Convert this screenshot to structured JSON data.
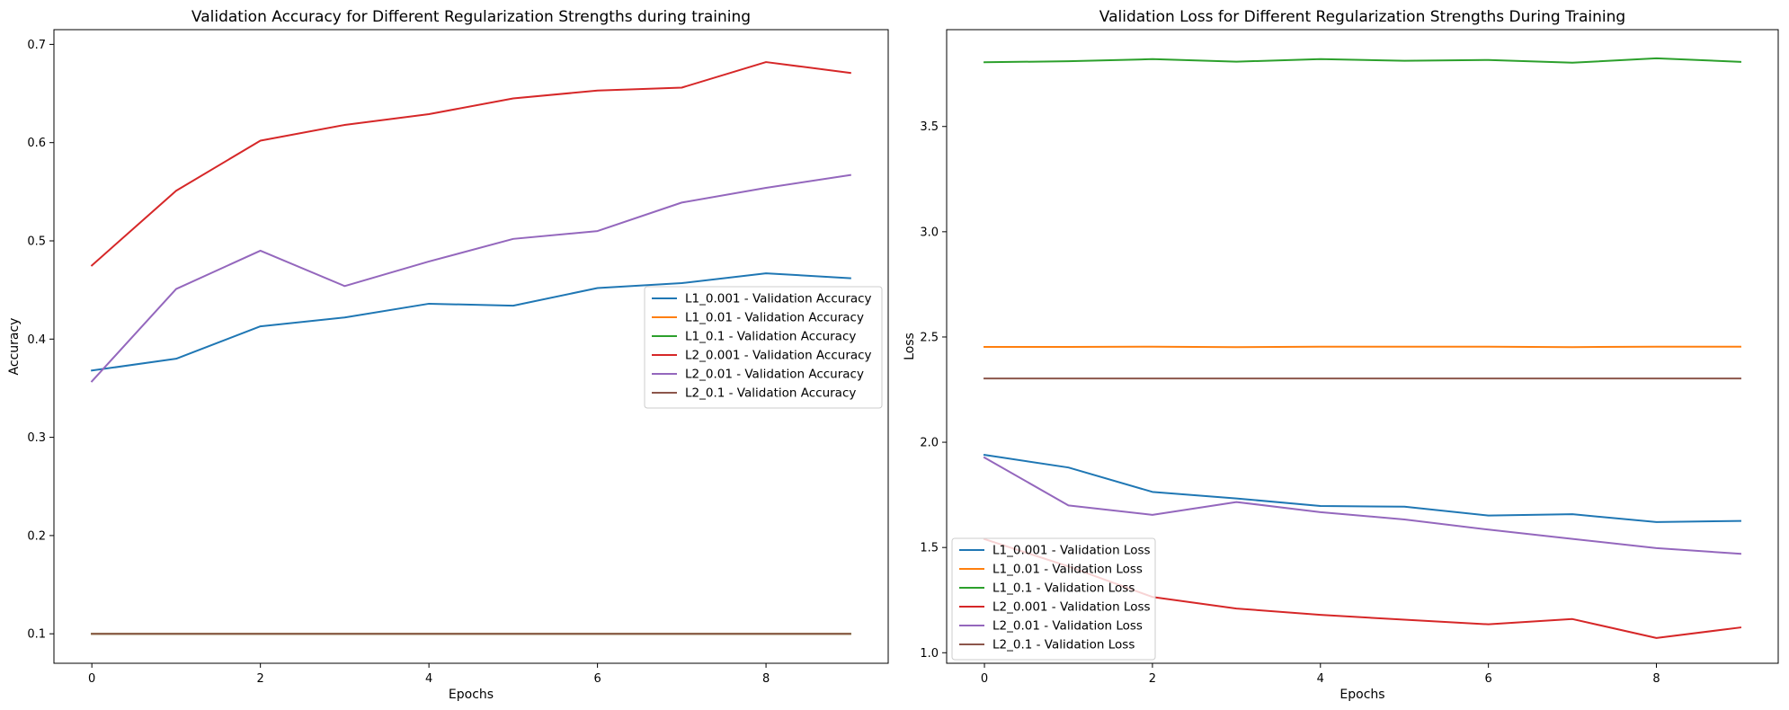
{
  "chart_data": [
    {
      "type": "line",
      "title": "Validation Accuracy for Different Regularization Strengths during training",
      "xlabel": "Epochs",
      "ylabel": "Accuracy",
      "xlim": [
        -0.45,
        9.45
      ],
      "ylim": [
        0.07,
        0.715
      ],
      "xticks": [
        0,
        2,
        4,
        6,
        8
      ],
      "yticks": [
        0.1,
        0.2,
        0.3,
        0.4,
        0.5,
        0.6,
        0.7
      ],
      "grid": false,
      "legend_position": "center-right",
      "x": [
        0,
        1,
        2,
        3,
        4,
        5,
        6,
        7,
        8,
        9
      ],
      "series": [
        {
          "name": "L1_0.001 - Validation Accuracy",
          "color": "#1f77b4",
          "values": [
            0.368,
            0.38,
            0.413,
            0.422,
            0.436,
            0.434,
            0.452,
            0.457,
            0.467,
            0.462
          ]
        },
        {
          "name": "L1_0.01 - Validation Accuracy",
          "color": "#ff7f0e",
          "values": [
            0.1,
            0.1,
            0.1,
            0.1,
            0.1,
            0.1,
            0.1,
            0.1,
            0.1,
            0.1
          ]
        },
        {
          "name": "L1_0.1 - Validation Accuracy",
          "color": "#2ca02c",
          "values": [
            0.1,
            0.1,
            0.1,
            0.1,
            0.1,
            0.1,
            0.1,
            0.1,
            0.1,
            0.1
          ]
        },
        {
          "name": "L2_0.001 - Validation Accuracy",
          "color": "#d62728",
          "values": [
            0.475,
            0.551,
            0.602,
            0.618,
            0.629,
            0.645,
            0.653,
            0.656,
            0.682,
            0.671
          ]
        },
        {
          "name": "L2_0.01 - Validation Accuracy",
          "color": "#9467bd",
          "values": [
            0.357,
            0.451,
            0.49,
            0.454,
            0.479,
            0.502,
            0.51,
            0.539,
            0.554,
            0.567
          ]
        },
        {
          "name": "L2_0.1 - Validation Accuracy",
          "color": "#8c564b",
          "values": [
            0.1,
            0.1,
            0.1,
            0.1,
            0.1,
            0.1,
            0.1,
            0.1,
            0.1,
            0.1
          ]
        }
      ]
    },
    {
      "type": "line",
      "title": "Validation Loss for Different Regularization Strengths During Training",
      "xlabel": "Epochs",
      "ylabel": "Loss",
      "xlim": [
        -0.45,
        9.45
      ],
      "ylim": [
        0.95,
        3.96
      ],
      "xticks": [
        0,
        2,
        4,
        6,
        8
      ],
      "yticks": [
        1.0,
        1.5,
        2.0,
        2.5,
        3.0,
        3.5
      ],
      "grid": false,
      "legend_position": "lower-left",
      "x": [
        0,
        1,
        2,
        3,
        4,
        5,
        6,
        7,
        8,
        9
      ],
      "series": [
        {
          "name": "L1_0.001 - Validation Loss",
          "color": "#1f77b4",
          "values": [
            1.94,
            1.88,
            1.764,
            1.733,
            1.697,
            1.694,
            1.652,
            1.658,
            1.621,
            1.626
          ]
        },
        {
          "name": "L1_0.01 - Validation Loss",
          "color": "#ff7f0e",
          "values": [
            2.453,
            2.453,
            2.454,
            2.452,
            2.454,
            2.454,
            2.454,
            2.452,
            2.454,
            2.454
          ]
        },
        {
          "name": "L1_0.1 - Validation Loss",
          "color": "#2ca02c",
          "values": [
            3.805,
            3.81,
            3.82,
            3.808,
            3.82,
            3.812,
            3.816,
            3.803,
            3.824,
            3.807
          ]
        },
        {
          "name": "L2_0.001 - Validation Loss",
          "color": "#d62728",
          "values": [
            1.54,
            1.41,
            1.265,
            1.21,
            1.18,
            1.157,
            1.135,
            1.16,
            1.07,
            1.12
          ]
        },
        {
          "name": "L2_0.01 - Validation Loss",
          "color": "#9467bd",
          "values": [
            1.927,
            1.7,
            1.655,
            1.716,
            1.668,
            1.633,
            1.585,
            1.541,
            1.497,
            1.47
          ]
        },
        {
          "name": "L2_0.1 - Validation Loss",
          "color": "#8c564b",
          "values": [
            2.303,
            2.303,
            2.303,
            2.303,
            2.303,
            2.303,
            2.303,
            2.303,
            2.303,
            2.303
          ]
        }
      ]
    }
  ]
}
